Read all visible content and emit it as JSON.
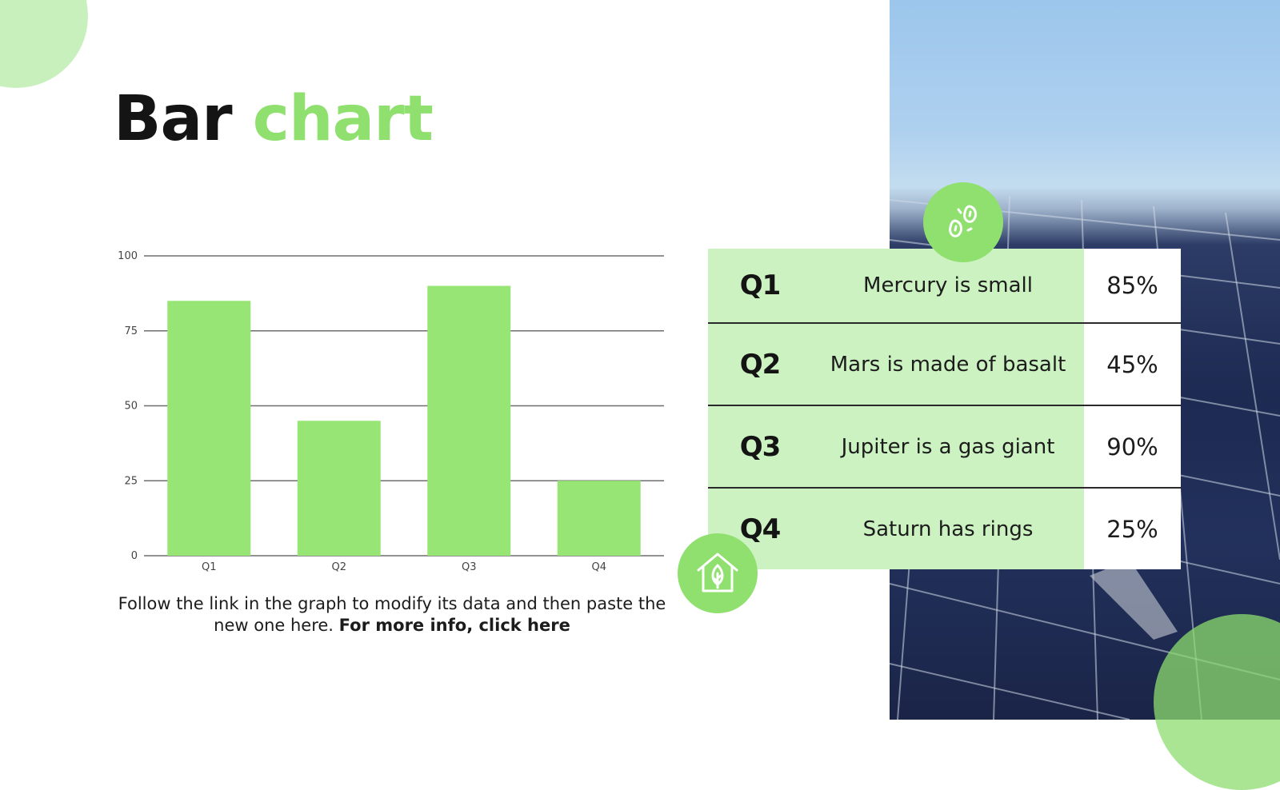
{
  "slide": {
    "title_main": "Bar",
    "title_accent": "chart",
    "caption_regular": "Follow the link in the graph to modify its data and then paste the new one here.",
    "caption_link": "For more info, click here",
    "accent_color": "#8fe06e",
    "light_accent_color": "#ccf2c2"
  },
  "icons": {
    "top_badge": "seeds-icon",
    "bottom_badge": "eco-house-icon"
  },
  "table": {
    "rows": [
      {
        "quarter": "Q1",
        "description": "Mercury is small",
        "percent": "85%"
      },
      {
        "quarter": "Q2",
        "description": "Mars is made of basalt",
        "percent": "45%"
      },
      {
        "quarter": "Q3",
        "description": "Jupiter is a gas giant",
        "percent": "90%"
      },
      {
        "quarter": "Q4",
        "description": "Saturn has rings",
        "percent": "25%"
      }
    ]
  },
  "chart_data": {
    "type": "bar",
    "categories": [
      "Q1",
      "Q2",
      "Q3",
      "Q4"
    ],
    "values": [
      85,
      45,
      90,
      25
    ],
    "ylim": [
      0,
      100
    ],
    "yticks": [
      0,
      25,
      50,
      75,
      100
    ],
    "grid": true,
    "bar_color": "#97e574"
  }
}
